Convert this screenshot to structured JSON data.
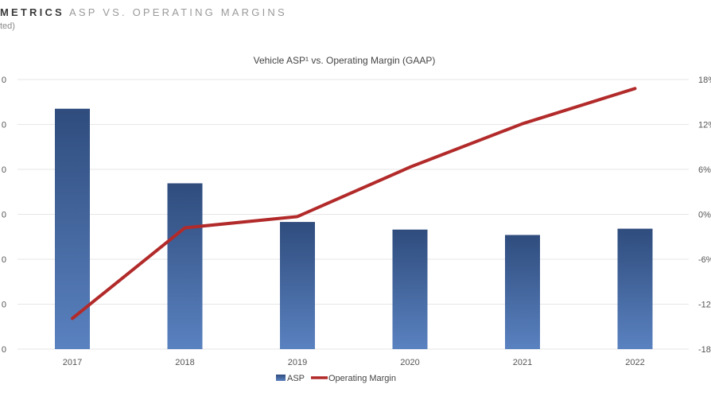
{
  "header": {
    "line_strong": "METRICS",
    "line_rest": "ASP VS. OPERATING MARGINS",
    "subtitle": "ted)"
  },
  "chart_data": {
    "type": "bar",
    "title": "Vehicle ASP¹ vs. Operating Margin (GAAP)",
    "categories": [
      "2017",
      "2018",
      "2019",
      "2020",
      "2021",
      "2022"
    ],
    "series": [
      {
        "name": "ASP",
        "type": "bar",
        "axis": "left",
        "values": [
          53.5,
          36.9,
          28.3,
          26.6,
          25.4,
          26.8
        ]
      },
      {
        "name": "Operating Margin",
        "type": "line",
        "axis": "right",
        "values": [
          -13.9,
          -1.8,
          -0.3,
          6.3,
          12.1,
          16.8
        ]
      }
    ],
    "left_axis": {
      "ylim": [
        0,
        60
      ],
      "ticks": [
        0,
        10,
        20,
        30,
        40,
        50,
        60
      ],
      "tick_labels": [
        "0",
        "0",
        "0",
        "0",
        "0",
        "0",
        "0"
      ]
    },
    "right_axis": {
      "ylim": [
        -18,
        18
      ],
      "ticks": [
        -18,
        -12,
        -6,
        0,
        6,
        12,
        18
      ],
      "tick_labels": [
        "-18",
        "-12",
        "-6%",
        "0%",
        "6%",
        "12%",
        "18%"
      ]
    },
    "grid": true,
    "legend_position": "bottom",
    "colors": {
      "bar_top": "#2f4c7d",
      "bar_bottom": "#5a82c0",
      "line": "#b22a2a",
      "grid": "#e6e6e6"
    }
  }
}
